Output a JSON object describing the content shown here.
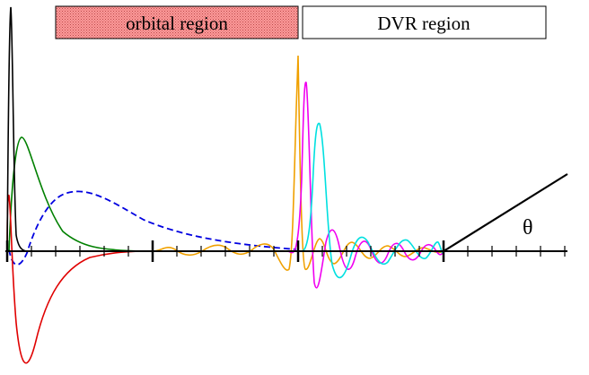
{
  "legend": {
    "orbital_region": "orbital region",
    "dvr_region": "DVR region"
  },
  "theta_label": "θ",
  "colors": {
    "orbital_fill": "#ff8a8a",
    "orbital_stipple": "#b84040",
    "axis": "#000000",
    "black_curve": "#000000",
    "green_curve": "#008000",
    "red_curve": "#e00000",
    "blue_dashed": "#0000e0",
    "orange_curve": "#f0a000",
    "magenta_curve": "#f000f0",
    "cyan_curve": "#00e0e0"
  }
}
